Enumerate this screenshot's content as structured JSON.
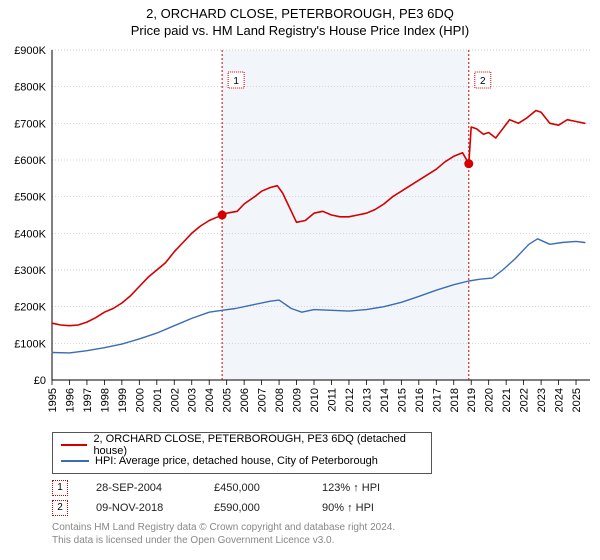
{
  "title": {
    "main": "2, ORCHARD CLOSE, PETERBOROUGH, PE3 6DQ",
    "sub": "Price paid vs. HM Land Registry's House Price Index (HPI)"
  },
  "chart": {
    "type": "line",
    "background_color": "#ffffff",
    "shaded_band_color": "#f2f6fa",
    "shaded_band_x": [
      2004.74,
      2018.86
    ],
    "grid_color": "#bfbfbf",
    "grid_dash": "1,2",
    "axis_color": "#000000",
    "xlim": [
      1995,
      2025.8
    ],
    "xticks": [
      1995,
      1996,
      1997,
      1998,
      1999,
      2000,
      2001,
      2002,
      2003,
      2004,
      2005,
      2006,
      2007,
      2008,
      2009,
      2010,
      2011,
      2012,
      2013,
      2014,
      2015,
      2016,
      2017,
      2018,
      2019,
      2020,
      2021,
      2022,
      2023,
      2024,
      2025
    ],
    "ylim": [
      0,
      900000
    ],
    "yticks": [
      0,
      100000,
      200000,
      300000,
      400000,
      500000,
      600000,
      700000,
      800000,
      900000
    ],
    "ytick_labels": [
      "£0",
      "£100K",
      "£200K",
      "£300K",
      "£400K",
      "£500K",
      "£600K",
      "£700K",
      "£800K",
      "£900K"
    ],
    "tick_fontsize": 11,
    "tick_color": "#000000",
    "series": [
      {
        "name": "subject",
        "label": "2, ORCHARD CLOSE, PETERBOROUGH, PE3 6DQ (detached house)",
        "color": "#d40000",
        "line_width": 1.6,
        "data": [
          [
            1995.0,
            155000
          ],
          [
            1995.5,
            150000
          ],
          [
            1996.0,
            148000
          ],
          [
            1996.5,
            150000
          ],
          [
            1997.0,
            158000
          ],
          [
            1997.5,
            170000
          ],
          [
            1998.0,
            185000
          ],
          [
            1998.5,
            195000
          ],
          [
            1999.0,
            210000
          ],
          [
            1999.5,
            230000
          ],
          [
            2000.0,
            255000
          ],
          [
            2000.5,
            280000
          ],
          [
            2001.0,
            300000
          ],
          [
            2001.5,
            320000
          ],
          [
            2002.0,
            350000
          ],
          [
            2002.5,
            375000
          ],
          [
            2003.0,
            400000
          ],
          [
            2003.5,
            420000
          ],
          [
            2004.0,
            435000
          ],
          [
            2004.5,
            445000
          ],
          [
            2004.74,
            450000
          ],
          [
            2005.0,
            455000
          ],
          [
            2005.6,
            460000
          ],
          [
            2006.0,
            480000
          ],
          [
            2006.6,
            500000
          ],
          [
            2007.0,
            515000
          ],
          [
            2007.5,
            525000
          ],
          [
            2007.9,
            530000
          ],
          [
            2008.2,
            510000
          ],
          [
            2008.7,
            460000
          ],
          [
            2009.0,
            430000
          ],
          [
            2009.5,
            435000
          ],
          [
            2010.0,
            455000
          ],
          [
            2010.5,
            460000
          ],
          [
            2011.0,
            450000
          ],
          [
            2011.5,
            445000
          ],
          [
            2012.0,
            445000
          ],
          [
            2012.5,
            450000
          ],
          [
            2013.0,
            455000
          ],
          [
            2013.5,
            465000
          ],
          [
            2014.0,
            480000
          ],
          [
            2014.5,
            500000
          ],
          [
            2015.0,
            515000
          ],
          [
            2015.5,
            530000
          ],
          [
            2016.0,
            545000
          ],
          [
            2016.5,
            560000
          ],
          [
            2017.0,
            575000
          ],
          [
            2017.5,
            595000
          ],
          [
            2018.0,
            610000
          ],
          [
            2018.5,
            620000
          ],
          [
            2018.86,
            590000
          ],
          [
            2019.0,
            690000
          ],
          [
            2019.3,
            685000
          ],
          [
            2019.7,
            670000
          ],
          [
            2020.0,
            675000
          ],
          [
            2020.4,
            660000
          ],
          [
            2020.8,
            685000
          ],
          [
            2021.2,
            710000
          ],
          [
            2021.7,
            700000
          ],
          [
            2022.2,
            715000
          ],
          [
            2022.7,
            735000
          ],
          [
            2023.0,
            730000
          ],
          [
            2023.5,
            700000
          ],
          [
            2024.0,
            695000
          ],
          [
            2024.5,
            710000
          ],
          [
            2025.0,
            705000
          ],
          [
            2025.5,
            700000
          ]
        ]
      },
      {
        "name": "hpi",
        "label": "HPI: Average price, detached house, City of Peterborough",
        "color": "#3b6db5",
        "line_width": 1.4,
        "data": [
          [
            1995.0,
            75000
          ],
          [
            1996.0,
            74000
          ],
          [
            1997.0,
            80000
          ],
          [
            1998.0,
            88000
          ],
          [
            1999.0,
            98000
          ],
          [
            2000.0,
            112000
          ],
          [
            2001.0,
            128000
          ],
          [
            2002.0,
            148000
          ],
          [
            2003.0,
            168000
          ],
          [
            2004.0,
            185000
          ],
          [
            2004.74,
            190000
          ],
          [
            2005.5,
            195000
          ],
          [
            2006.5,
            205000
          ],
          [
            2007.5,
            215000
          ],
          [
            2008.0,
            218000
          ],
          [
            2008.7,
            195000
          ],
          [
            2009.3,
            185000
          ],
          [
            2010.0,
            192000
          ],
          [
            2011.0,
            190000
          ],
          [
            2012.0,
            188000
          ],
          [
            2013.0,
            192000
          ],
          [
            2014.0,
            200000
          ],
          [
            2015.0,
            212000
          ],
          [
            2016.0,
            228000
          ],
          [
            2017.0,
            245000
          ],
          [
            2018.0,
            260000
          ],
          [
            2018.86,
            270000
          ],
          [
            2019.5,
            275000
          ],
          [
            2020.2,
            278000
          ],
          [
            2020.8,
            300000
          ],
          [
            2021.5,
            330000
          ],
          [
            2022.3,
            370000
          ],
          [
            2022.8,
            385000
          ],
          [
            2023.5,
            370000
          ],
          [
            2024.2,
            375000
          ],
          [
            2025.0,
            378000
          ],
          [
            2025.5,
            375000
          ]
        ]
      }
    ],
    "markers": [
      {
        "n": 1,
        "x": 2004.74,
        "y": 450000,
        "vline_color": "#d40000",
        "dot_color": "#d40000",
        "label_border": "#d40000",
        "label_y": 840000
      },
      {
        "n": 2,
        "x": 2018.86,
        "y": 590000,
        "vline_color": "#d40000",
        "dot_color": "#d40000",
        "label_border": "#d40000",
        "label_y": 840000
      }
    ]
  },
  "legend": {
    "border_color": "#555555",
    "items": [
      {
        "color": "#d40000",
        "label": "2, ORCHARD CLOSE, PETERBOROUGH, PE3 6DQ (detached house)"
      },
      {
        "color": "#3b6db5",
        "label": "HPI: Average price, detached house, City of Peterborough"
      }
    ]
  },
  "transactions": [
    {
      "n": 1,
      "color": "#d40000",
      "date": "28-SEP-2004",
      "price": "£450,000",
      "pct": "123% ↑ HPI"
    },
    {
      "n": 2,
      "color": "#d40000",
      "date": "09-NOV-2018",
      "price": "£590,000",
      "pct": "90% ↑ HPI"
    }
  ],
  "footer": {
    "line1": "Contains HM Land Registry data © Crown copyright and database right 2024.",
    "line2": "This data is licensed under the Open Government Licence v3.0."
  }
}
